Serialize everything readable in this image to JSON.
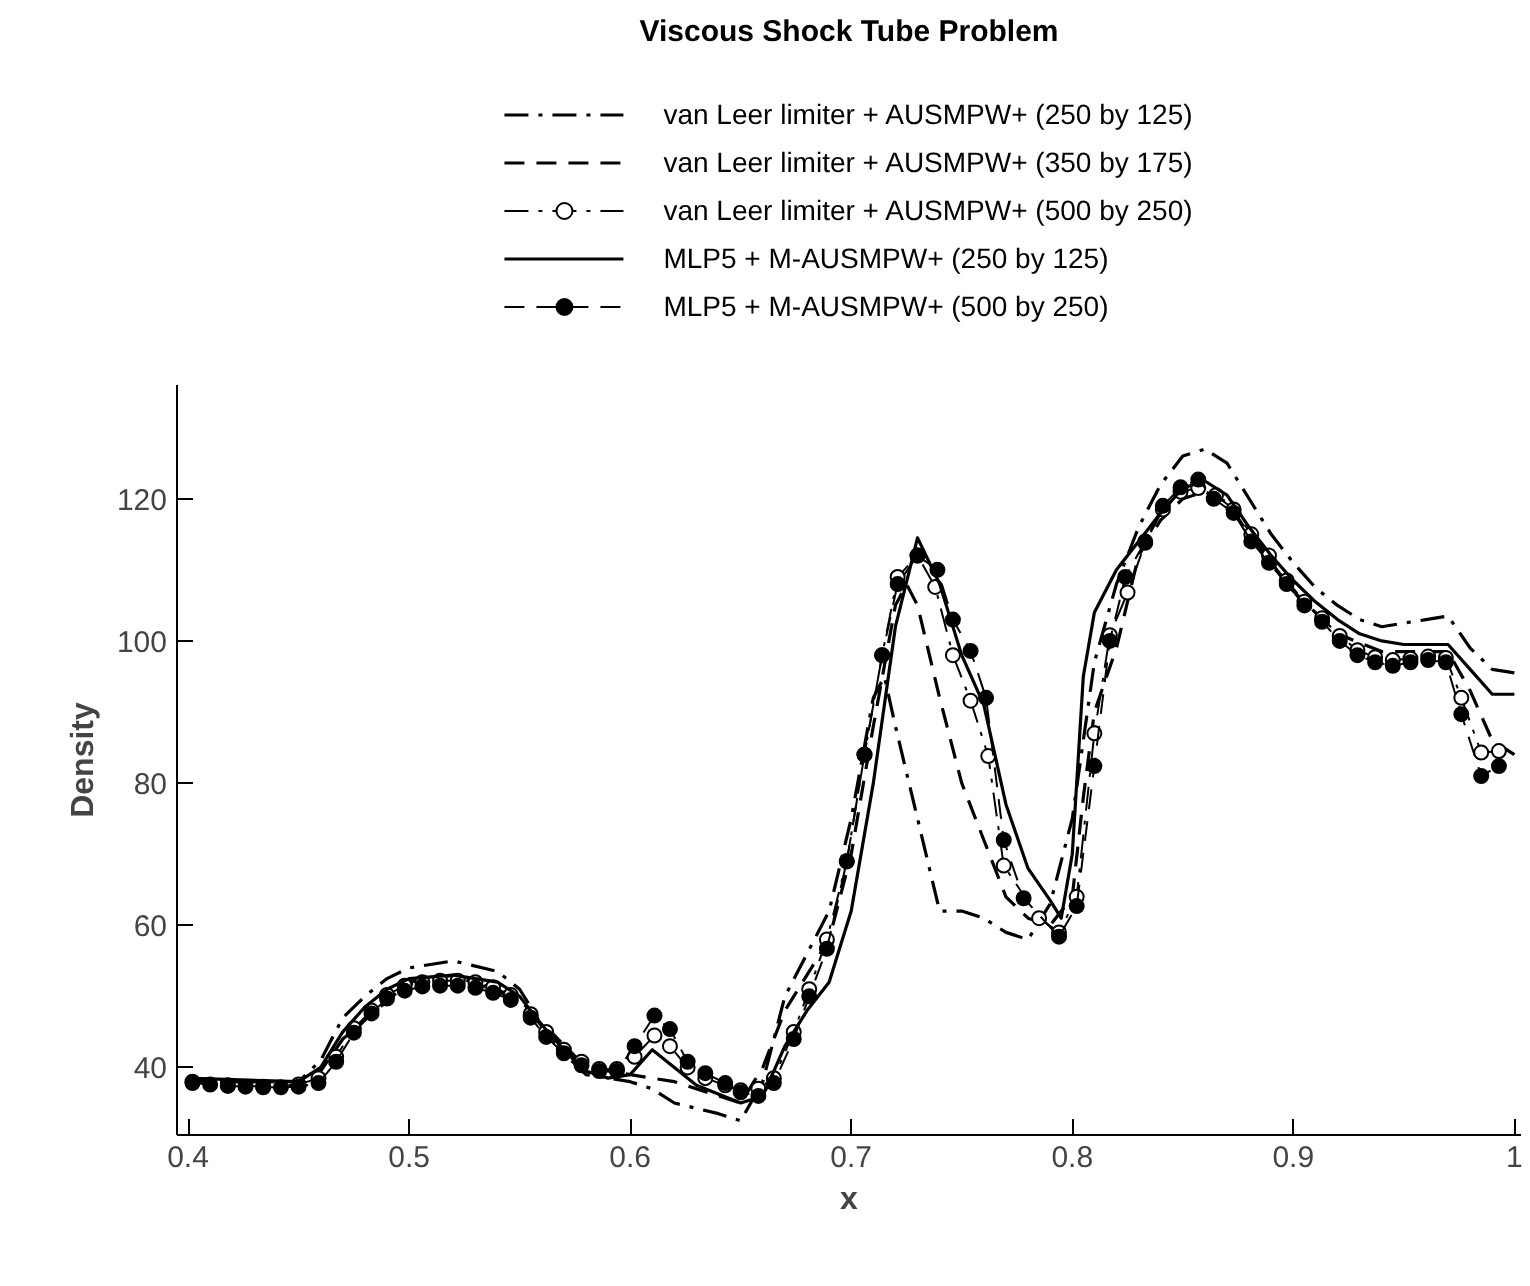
{
  "chart_data": {
    "type": "line",
    "title": "Viscous Shock Tube Problem",
    "xlabel": "x",
    "ylabel": "Density",
    "xlim": [
      0.395,
      1.003
    ],
    "ylim": [
      30.5,
      136
    ],
    "xticks": [
      0.4,
      0.5,
      0.6,
      0.7,
      0.8,
      0.9,
      1
    ],
    "yticks": [
      40,
      60,
      80,
      100,
      120
    ],
    "grid": false,
    "legend": "top",
    "marker": "none",
    "series": [
      {
        "name": "van Leer limiter + AUSMPW+ (250 by 125)",
        "color": "#000000",
        "line_style": "dashdot",
        "x": [
          0.4,
          0.45,
          0.46,
          0.47,
          0.48,
          0.49,
          0.5,
          0.52,
          0.54,
          0.55,
          0.56,
          0.57,
          0.58,
          0.6,
          0.61,
          0.62,
          0.64,
          0.65,
          0.66,
          0.67,
          0.68,
          0.69,
          0.7,
          0.71,
          0.715,
          0.72,
          0.73,
          0.74,
          0.75,
          0.76,
          0.77,
          0.78,
          0.79,
          0.8,
          0.81,
          0.82,
          0.83,
          0.84,
          0.85,
          0.86,
          0.87,
          0.88,
          0.89,
          0.9,
          0.91,
          0.92,
          0.93,
          0.94,
          0.95,
          0.96,
          0.97,
          0.98,
          0.99,
          1.0
        ],
        "values": [
          38,
          38,
          41,
          47,
          50,
          52.5,
          54,
          55,
          53.5,
          51,
          46,
          42,
          39,
          38,
          37,
          35,
          33.5,
          32.5,
          38,
          50,
          56,
          62,
          75,
          92,
          95,
          88,
          75,
          62,
          62,
          61,
          59,
          58,
          63,
          75,
          97,
          108,
          116,
          122,
          126,
          127,
          125,
          120,
          115,
          111,
          107.5,
          105,
          103,
          102,
          102.5,
          103,
          103.5,
          99,
          96,
          95.5
        ]
      },
      {
        "name": "van Leer limiter + AUSMPW+ (350 by 175)",
        "color": "#000000",
        "line_style": "dashed",
        "x": [
          0.4,
          0.45,
          0.46,
          0.47,
          0.5,
          0.52,
          0.55,
          0.58,
          0.6,
          0.62,
          0.64,
          0.65,
          0.66,
          0.67,
          0.69,
          0.7,
          0.71,
          0.72,
          0.725,
          0.73,
          0.74,
          0.75,
          0.76,
          0.77,
          0.78,
          0.79,
          0.8,
          0.805,
          0.81,
          0.82,
          0.83,
          0.84,
          0.85,
          0.86,
          0.87,
          0.88,
          0.9,
          0.92,
          0.94,
          0.96,
          0.97,
          0.98,
          0.99,
          1.0
        ],
        "values": [
          38,
          38,
          39.5,
          44,
          52,
          53,
          49.5,
          40,
          39,
          38,
          36,
          35,
          40,
          48,
          58,
          70,
          88,
          105,
          108,
          105,
          92,
          80,
          72,
          64,
          61,
          60,
          64,
          78,
          90,
          99,
          112,
          117,
          120,
          121,
          119.5,
          115,
          107,
          101,
          98.5,
          98.5,
          98.5,
          93,
          86,
          84
        ]
      },
      {
        "name": "van Leer limiter + AUSMPW+ (500 by 250)",
        "color": "#000000",
        "line_style": "dashdot",
        "marker": "circle_open",
        "x": [
          0.402,
          0.418,
          0.434,
          0.45,
          0.459,
          0.467,
          0.475,
          0.483,
          0.49,
          0.498,
          0.506,
          0.514,
          0.522,
          0.53,
          0.538,
          0.546,
          0.555,
          0.562,
          0.57,
          0.578,
          0.586,
          0.594,
          0.602,
          0.611,
          0.618,
          0.626,
          0.634,
          0.643,
          0.65,
          0.658,
          0.665,
          0.674,
          0.681,
          0.689,
          0.698,
          0.706,
          0.714,
          0.721,
          0.73,
          0.738,
          0.746,
          0.754,
          0.762,
          0.769,
          0.785,
          0.794,
          0.802,
          0.81,
          0.817,
          0.825,
          0.833,
          0.841,
          0.849,
          0.857,
          0.865,
          0.873,
          0.881,
          0.889,
          0.897,
          0.905,
          0.913,
          0.921,
          0.929,
          0.937,
          0.945,
          0.953,
          0.961,
          0.969,
          0.976,
          0.985,
          0.993
        ],
        "values": [
          38,
          37.5,
          37.3,
          37.6,
          38.5,
          41.5,
          45.5,
          48,
          50.2,
          51.5,
          52,
          52.2,
          52.2,
          52,
          51.3,
          50.2,
          47.5,
          45,
          42.5,
          40.8,
          39.8,
          39.8,
          41.5,
          44.5,
          43,
          40,
          38.5,
          37.5,
          36.8,
          37,
          38.5,
          45,
          51,
          58,
          69,
          84,
          98,
          109,
          112,
          107.6,
          98,
          91.6,
          83.8,
          68.4,
          61,
          59,
          64,
          87,
          100.8,
          106.8,
          113.8,
          118.5,
          121,
          121.5,
          120.5,
          118.5,
          115,
          112,
          108.5,
          105.5,
          103.2,
          100.7,
          98.7,
          97.7,
          97.3,
          97.5,
          97.8,
          97.6,
          92,
          84.3,
          84.5
        ]
      },
      {
        "name": "MLP5 + M-AUSMPW+ (250 by 125)",
        "color": "#000000",
        "line_style": "solid",
        "x": [
          0.4,
          0.45,
          0.46,
          0.47,
          0.48,
          0.49,
          0.5,
          0.52,
          0.54,
          0.55,
          0.56,
          0.57,
          0.58,
          0.59,
          0.6,
          0.61,
          0.62,
          0.63,
          0.65,
          0.66,
          0.67,
          0.68,
          0.69,
          0.7,
          0.71,
          0.72,
          0.73,
          0.74,
          0.75,
          0.76,
          0.77,
          0.78,
          0.79,
          0.795,
          0.8,
          0.805,
          0.81,
          0.82,
          0.83,
          0.84,
          0.85,
          0.86,
          0.87,
          0.88,
          0.89,
          0.9,
          0.91,
          0.92,
          0.93,
          0.94,
          0.95,
          0.96,
          0.97,
          0.98,
          0.99,
          1.0
        ],
        "values": [
          38.5,
          38,
          40,
          45,
          48.5,
          51,
          52.5,
          53,
          52,
          50,
          46,
          42.5,
          39.5,
          38.5,
          39,
          42.5,
          40,
          37.5,
          35,
          36,
          43,
          48,
          52,
          62,
          80,
          102,
          114.5,
          108,
          98,
          91,
          77,
          68,
          63.5,
          61,
          70,
          95,
          104,
          110,
          114,
          118,
          121.5,
          122.5,
          120.5,
          116,
          112,
          108.5,
          105.5,
          103,
          101,
          100,
          99.5,
          99.5,
          99.5,
          96,
          92.5,
          92.5
        ]
      },
      {
        "name": "MLP5 + M-AUSMPW+ (500 by 250)",
        "color": "#000000",
        "line_style": "dashed",
        "marker": "circle",
        "x": [
          0.402,
          0.41,
          0.418,
          0.426,
          0.434,
          0.442,
          0.45,
          0.459,
          0.467,
          0.475,
          0.483,
          0.49,
          0.498,
          0.506,
          0.514,
          0.522,
          0.53,
          0.538,
          0.546,
          0.555,
          0.562,
          0.57,
          0.578,
          0.586,
          0.594,
          0.602,
          0.611,
          0.618,
          0.626,
          0.634,
          0.643,
          0.65,
          0.658,
          0.665,
          0.674,
          0.681,
          0.689,
          0.698,
          0.706,
          0.714,
          0.721,
          0.73,
          0.739,
          0.746,
          0.754,
          0.761,
          0.769,
          0.778,
          0.794,
          0.802,
          0.81,
          0.817,
          0.824,
          0.833,
          0.841,
          0.849,
          0.857,
          0.864,
          0.873,
          0.881,
          0.889,
          0.897,
          0.905,
          0.913,
          0.921,
          0.929,
          0.937,
          0.945,
          0.953,
          0.961,
          0.969,
          0.976,
          0.985,
          0.993
        ],
        "values": [
          37.8,
          37.6,
          37.4,
          37.3,
          37.2,
          37.2,
          37.3,
          37.8,
          40.8,
          44.9,
          47.6,
          49.7,
          50.8,
          51.4,
          51.5,
          51.5,
          51.2,
          50.5,
          49.5,
          47,
          44.3,
          42,
          40.3,
          39.5,
          39.5,
          43,
          47.3,
          45.4,
          40.8,
          39.2,
          37.8,
          36.5,
          36,
          37.8,
          44,
          50,
          56.7,
          69,
          84,
          98,
          108,
          112,
          110,
          103,
          98.6,
          92,
          72,
          63.8,
          58.4,
          62.7,
          82.4,
          100,
          109,
          114,
          119,
          121.6,
          122.7,
          120,
          118,
          114,
          111,
          108,
          105,
          102.7,
          100,
          98,
          97,
          96.5,
          97,
          97.3,
          97,
          89.7,
          81,
          82.4
        ]
      }
    ]
  }
}
